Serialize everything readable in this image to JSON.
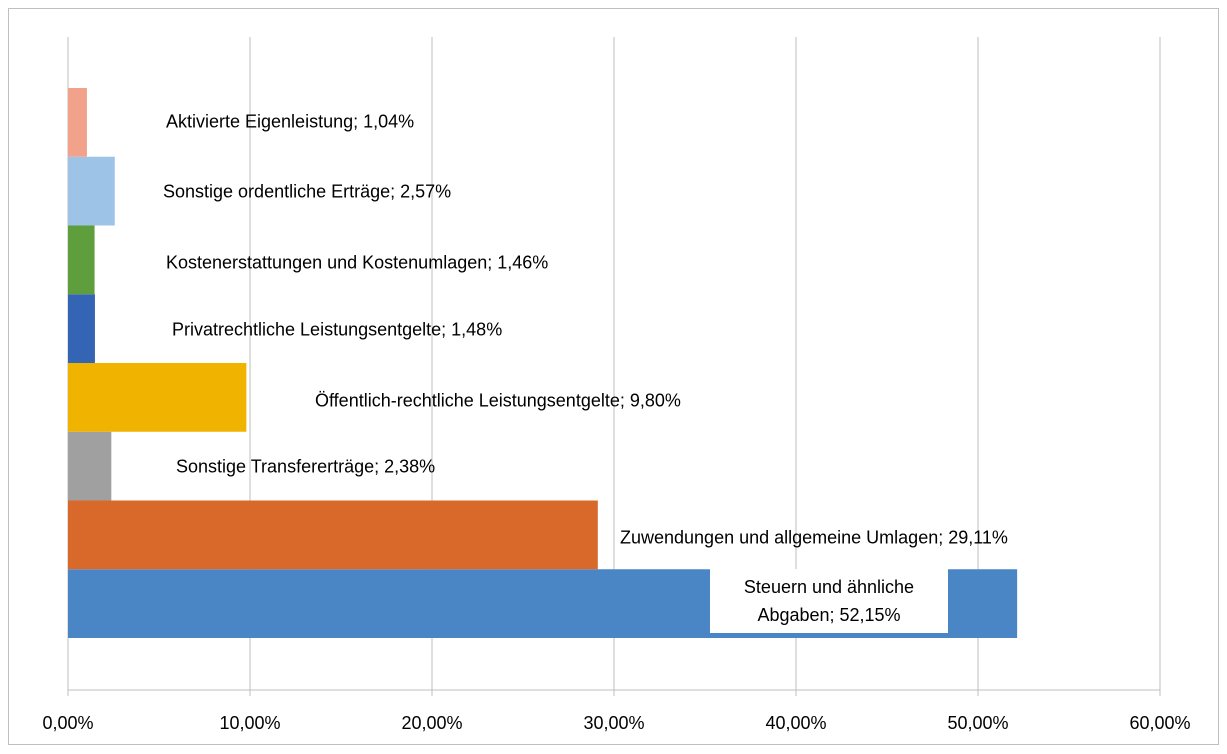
{
  "chart_data": {
    "type": "bar",
    "orientation": "horizontal",
    "values": [
      52.15,
      29.11,
      2.38,
      9.8,
      1.48,
      1.46,
      2.57,
      1.04
    ],
    "value_labels": [
      "Steuern und ähnliche Abgaben; 52,15%",
      "Zuwendungen und allgemeine Umlagen; 29,11%",
      "Sonstige Transfererträge; 2,38%",
      "Öffentlich-rechtliche Leistungsentgelte; 9,80%",
      "Privatrechtliche Leistungsentgelte; 1,48%",
      "Kostenerstattungen und Kostenumlagen; 1,46%",
      "Sonstige ordentliche Erträge; 2,57%",
      "Aktivierte Eigenleistung; 1,04%"
    ],
    "colors": [
      "#4a86c5",
      "#d9692a",
      "#a0a0a0",
      "#f0b400",
      "#3464b4",
      "#5e9e3c",
      "#9dc3e6",
      "#f2a28a"
    ],
    "xlim": [
      0,
      60
    ],
    "xticks": [
      {
        "value": 0,
        "label": "0,00%"
      },
      {
        "value": 10,
        "label": "10,00%"
      },
      {
        "value": 20,
        "label": "20,00%"
      },
      {
        "value": 30,
        "label": "30,00%"
      },
      {
        "value": 40,
        "label": "40,00%"
      },
      {
        "value": 50,
        "label": "50,00%"
      },
      {
        "value": 60,
        "label": "60,00%"
      }
    ],
    "grid": true
  }
}
